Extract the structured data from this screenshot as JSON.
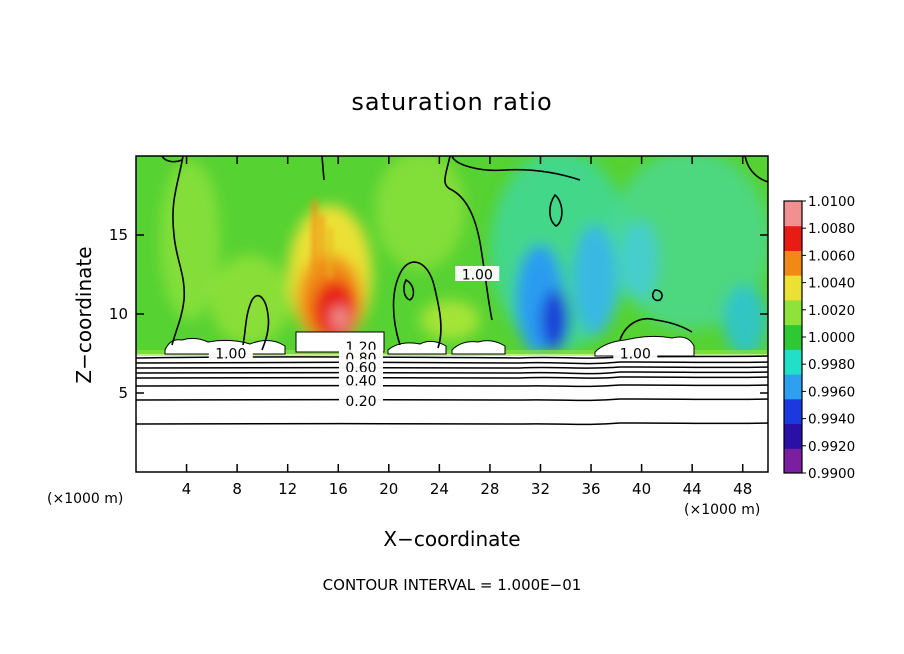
{
  "chart_data": {
    "type": "heatmap",
    "title": "saturation ratio",
    "xlabel": "X−coordinate",
    "ylabel": "Z−coordinate",
    "x_unit": "(×1000 m)",
    "y_unit": "(×1000 m)",
    "xlim": [
      0,
      50
    ],
    "ylim": [
      0,
      20
    ],
    "x_ticks": [
      4,
      8,
      12,
      16,
      20,
      24,
      28,
      32,
      36,
      40,
      44,
      48
    ],
    "y_ticks": [
      5,
      10,
      15
    ],
    "colorbar": {
      "min": 0.99,
      "max": 1.01,
      "levels": [
        "1.0100",
        "1.0080",
        "1.0060",
        "1.0040",
        "1.0020",
        "1.0000",
        "0.9980",
        "0.9960",
        "0.9940",
        "0.9920",
        "0.9900"
      ],
      "colors": [
        "#7a1fa0",
        "#2a0fa8",
        "#1a3ae0",
        "#2ea0f0",
        "#22e0c8",
        "#2ec832",
        "#8ee23a",
        "#ece034",
        "#f08a14",
        "#e81c14",
        "#f09090"
      ]
    },
    "contour_labels": [
      {
        "text": "1.20",
        "x": 17.8,
        "z": 7.9
      },
      {
        "text": "1.00",
        "x": 7.5,
        "z": 7.5
      },
      {
        "text": "1.00",
        "x": 39.5,
        "z": 7.5
      },
      {
        "text": "1.00",
        "x": 27.0,
        "z": 12.5
      },
      {
        "text": "0.80",
        "x": 17.8,
        "z": 7.2
      },
      {
        "text": "0.60",
        "x": 17.8,
        "z": 6.6
      },
      {
        "text": "0.40",
        "x": 17.8,
        "z": 5.8
      },
      {
        "text": "0.20",
        "x": 17.8,
        "z": 4.5
      }
    ],
    "contour_interval_text": "CONTOUR INTERVAL = 1.000E−01"
  }
}
